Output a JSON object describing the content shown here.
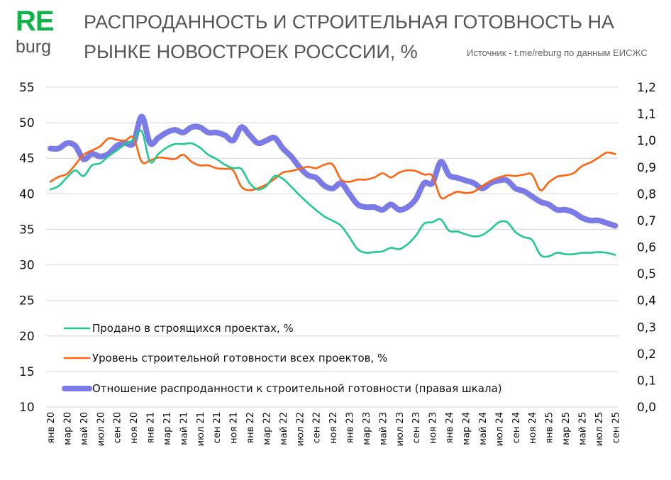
{
  "logo": {
    "top": "RE",
    "bottom": "burg",
    "color": "#12b24a"
  },
  "header": {
    "title_line1": "РАСПРОДАННОСТЬ И СТРОИТЕЛЬНАЯ ГОТОВНОСТЬ НА",
    "title_line2": "РЫНКЕ НОВОСТРОЕК РОСССИИ, %",
    "source": "Источник - t.me/reburg по данным ЕИСЖС"
  },
  "chart_data": {
    "type": "line",
    "title": "РАСПРОДАННОСТЬ И СТРОИТЕЛЬНАЯ ГОТОВНОСТЬ НА РЫНКЕ НОВОСТРОЕК РОСССИИ, %",
    "ylim": [
      10,
      55
    ],
    "y_ticks": [
      "10",
      "15",
      "20",
      "25",
      "30",
      "35",
      "40",
      "45",
      "50",
      "55"
    ],
    "y2lim": [
      0,
      1.2
    ],
    "y2_ticks": [
      "0,0",
      "0,1",
      "0,2",
      "0,3",
      "0,4",
      "0,5",
      "0,6",
      "0,7",
      "0,8",
      "0,9",
      "1,0",
      "1,1",
      "1,2"
    ],
    "grid": true,
    "legend_placement": "bottom-left (inside plot)",
    "x_tick_labels": [
      "янв 20",
      "мар 20",
      "май 20",
      "июл 20",
      "сен 20",
      "ноя 20",
      "янв 21",
      "мар 21",
      "май 21",
      "июл 21",
      "сен 21",
      "ноя 21",
      "янв 22",
      "мар 22",
      "май 22",
      "июл 22",
      "сен 22",
      "ноя 22",
      "янв 23",
      "мар 23",
      "май 23",
      "июл 23",
      "сен 23",
      "ноя 23",
      "янв 24",
      "мар 24",
      "май 24",
      "июл 24",
      "сен 24",
      "ноя 24",
      "янв 25",
      "мар 25",
      "май 25",
      "июл 25",
      "сен 25"
    ],
    "x_start": "янв 20",
    "x_end": "сен 25",
    "x_frequency": "monthly",
    "series": [
      {
        "name": "Продано в строящихся проектах, %",
        "axis": "left",
        "color": "#1fc98f",
        "values": [
          40.6,
          41.1,
          42.3,
          43.3,
          42.5,
          44.0,
          44.3,
          45.3,
          46.1,
          47.0,
          47.6,
          48.8,
          44.5,
          45.6,
          46.5,
          47.0,
          47.0,
          47.1,
          46.5,
          45.5,
          44.9,
          44.1,
          43.6,
          43.5,
          41.5,
          40.6,
          41.1,
          42.5,
          42.1,
          41.0,
          39.8,
          38.7,
          37.7,
          36.8,
          36.2,
          35.5,
          33.9,
          32.2,
          31.7,
          31.8,
          31.9,
          32.4,
          32.2,
          32.9,
          34.1,
          35.8,
          36.0,
          36.4,
          34.8,
          34.7,
          34.3,
          34.0,
          34.2,
          35.0,
          36.0,
          36.0,
          34.6,
          33.9,
          33.5,
          31.4,
          31.2,
          31.7,
          31.5,
          31.5,
          31.7,
          31.7,
          31.8,
          31.7,
          31.4
        ]
      },
      {
        "name": "Уровень строительной готовности всех проектов, %",
        "axis": "left",
        "color": "#ff6410",
        "values": [
          41.7,
          42.4,
          42.8,
          44.1,
          45.5,
          46.1,
          46.7,
          47.8,
          47.6,
          47.5,
          47.9,
          44.5,
          44.7,
          45.1,
          45.0,
          44.9,
          45.5,
          44.5,
          44.0,
          44.0,
          43.6,
          43.5,
          43.3,
          41.0,
          40.5,
          40.8,
          41.3,
          42.1,
          43.0,
          43.2,
          43.5,
          43.8,
          43.6,
          44.1,
          44.1,
          42.0,
          41.7,
          42.0,
          42.0,
          42.3,
          42.9,
          42.3,
          43.0,
          43.3,
          43.2,
          42.7,
          42.5,
          39.5,
          39.8,
          40.3,
          40.1,
          40.3,
          41.1,
          41.8,
          42.3,
          42.6,
          42.5,
          42.7,
          42.7,
          40.5,
          41.6,
          42.4,
          42.6,
          42.9,
          43.9,
          44.4,
          45.1,
          45.8,
          45.6
        ]
      },
      {
        "name": "Отношение распроданности к строительной готовности (правая шкала)",
        "axis": "right",
        "color": "#7b7be8",
        "values": [
          0.97,
          0.97,
          0.99,
          0.98,
          0.93,
          0.95,
          0.94,
          0.95,
          0.98,
          0.99,
          0.99,
          1.09,
          0.99,
          1.01,
          1.03,
          1.04,
          1.03,
          1.05,
          1.05,
          1.03,
          1.03,
          1.02,
          1.0,
          1.05,
          1.02,
          0.99,
          1.0,
          1.01,
          0.97,
          0.94,
          0.9,
          0.87,
          0.86,
          0.83,
          0.82,
          0.84,
          0.8,
          0.76,
          0.75,
          0.75,
          0.74,
          0.76,
          0.74,
          0.75,
          0.78,
          0.84,
          0.84,
          0.92,
          0.87,
          0.86,
          0.85,
          0.84,
          0.82,
          0.84,
          0.85,
          0.85,
          0.82,
          0.81,
          0.79,
          0.77,
          0.76,
          0.74,
          0.74,
          0.73,
          0.71,
          0.7,
          0.7,
          0.69,
          0.68
        ]
      }
    ]
  }
}
